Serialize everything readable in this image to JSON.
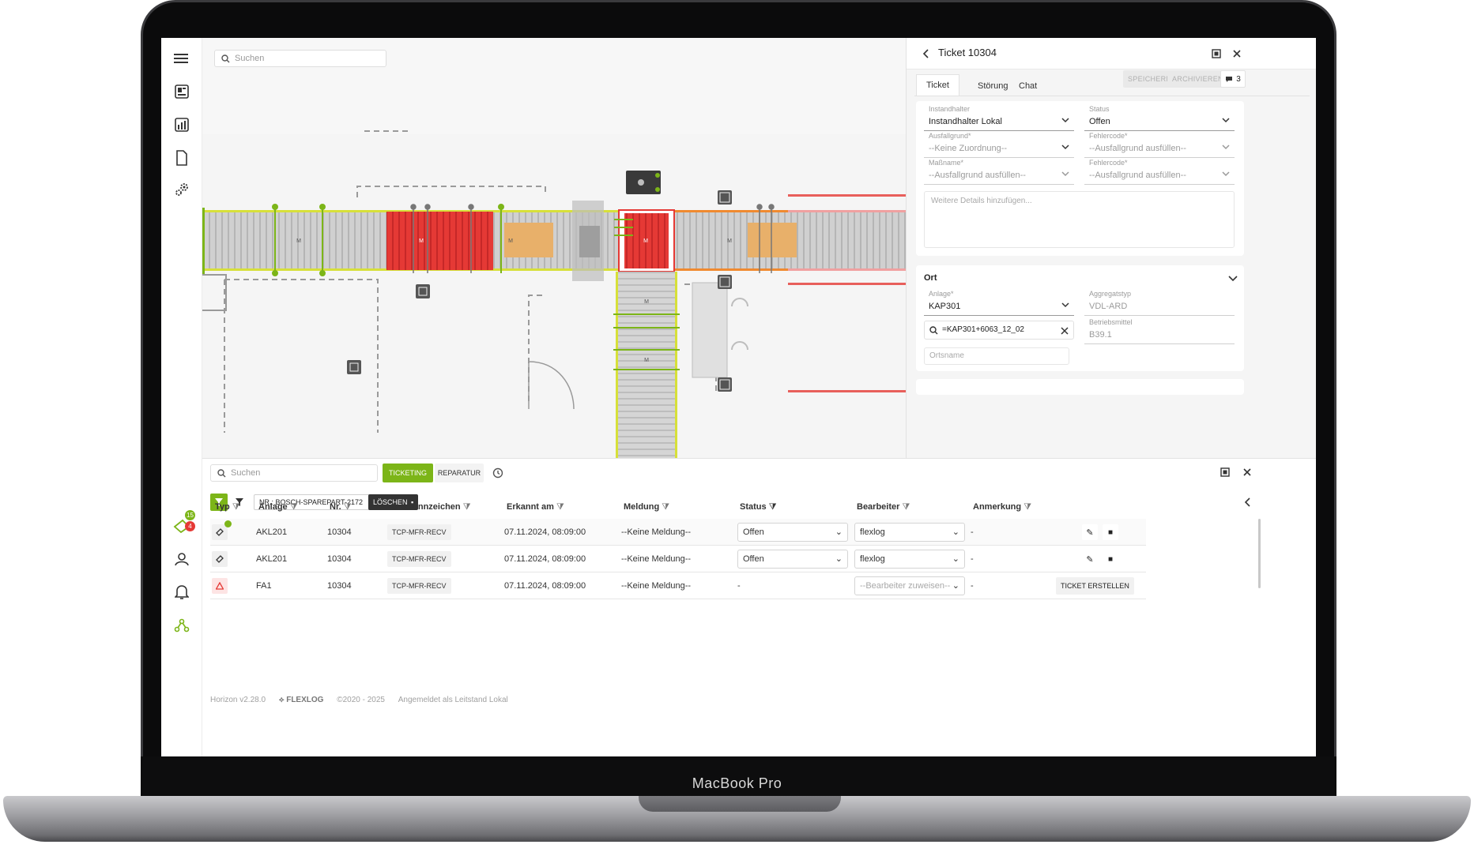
{
  "device": {
    "model_label": "MacBook Pro"
  },
  "map": {
    "search_placeholder": "Suchen",
    "motor_label": "M"
  },
  "sidebar": {
    "items": [
      {
        "icon": "menu-icon"
      },
      {
        "icon": "dashboard-icon"
      },
      {
        "icon": "bar-chart-icon"
      },
      {
        "icon": "document-icon"
      },
      {
        "icon": "settings-gears-icon"
      },
      {
        "icon": "tickets-icon",
        "badge_top": "15",
        "badge_bottom": "4"
      },
      {
        "icon": "user-icon"
      },
      {
        "icon": "bell-icon"
      },
      {
        "icon": "network-icon"
      }
    ]
  },
  "ticket_panel": {
    "title": "Ticket 10304",
    "tabs": [
      "Ticket",
      "Störung",
      "Chat"
    ],
    "active_tab": "Ticket",
    "save_label": "SPEICHERN",
    "archive_label": "ARCHIVIEREN",
    "comment_count": "3",
    "fields": {
      "instandhalter": {
        "label": "Instandhalter",
        "value": "Instandhalter Lokal"
      },
      "status": {
        "label": "Status",
        "value": "Offen"
      },
      "ausfallgrund": {
        "label": "Ausfallgrund*",
        "value": "--Keine Zuordnung--"
      },
      "fehlercode1": {
        "label": "Fehlercode*",
        "value": "--Ausfallgrund ausfüllen--"
      },
      "massname": {
        "label": "Maßname*",
        "value": "--Ausfallgrund ausfüllen--"
      },
      "fehlercode2": {
        "label": "Fehlercode*",
        "value": "--Ausfallgrund ausfüllen--"
      },
      "details_placeholder": "Weitere Details hinzufügen..."
    },
    "ort": {
      "title": "Ort",
      "anlage": {
        "label": "Anlage*",
        "value": "KAP301"
      },
      "aggregatstyp": {
        "label": "Aggregatstyp",
        "value": "VDL-ARD"
      },
      "search_value": "=KAP301+6063_12_02",
      "betriebsmittel": {
        "label": "Betriebsmittel",
        "value": "B39.1"
      },
      "ortsname_placeholder": "Ortsname"
    }
  },
  "bottom": {
    "search_placeholder": "Suchen",
    "tab_ticketing": "TICKETING",
    "tab_reparatur": "REPARATUR",
    "filter_chip": "NR.: BOSCH-SPAREPART-2172",
    "delete_label": "LÖSCHEN",
    "columns": [
      "Typ",
      "Anlage",
      "Nr.",
      "Ortskennzeichen",
      "Erkannt am",
      "Meldung",
      "Status",
      "Bearbeiter",
      "Anmerkung"
    ],
    "rows": [
      {
        "anlage": "AKL201",
        "nr": "10304",
        "ort": "TCP-MFR-RECV",
        "erkannt": "07.11.2024, 08:09:00",
        "meldung": "--Keine Meldung--",
        "status": "Offen",
        "bearbeiter": "flexlog",
        "anmerkung": "-"
      },
      {
        "anlage": "AKL201",
        "nr": "10304",
        "ort": "TCP-MFR-RECV",
        "erkannt": "07.11.2024, 08:09:00",
        "meldung": "--Keine Meldung--",
        "status": "Offen",
        "bearbeiter": "flexlog",
        "anmerkung": "-"
      },
      {
        "anlage": "FA1",
        "nr": "10304",
        "ort": "TCP-MFR-RECV",
        "erkannt": "07.11.2024, 08:09:00",
        "meldung": "--Keine Meldung--",
        "status": "-",
        "bearbeiter": "--Bearbeiter zuweisen--",
        "anmerkung": "-",
        "action": "TICKET ERSTELLEN"
      }
    ],
    "footer": {
      "version": "Horizon v2.28.0",
      "brand": "FLEXLOG",
      "copyright": "©2020 - 2025",
      "login": "Angemeldet als Leitstand Lokal"
    }
  },
  "colors": {
    "accent": "#7cb518",
    "alarm": "#e53935",
    "warning": "#e8b06a"
  }
}
